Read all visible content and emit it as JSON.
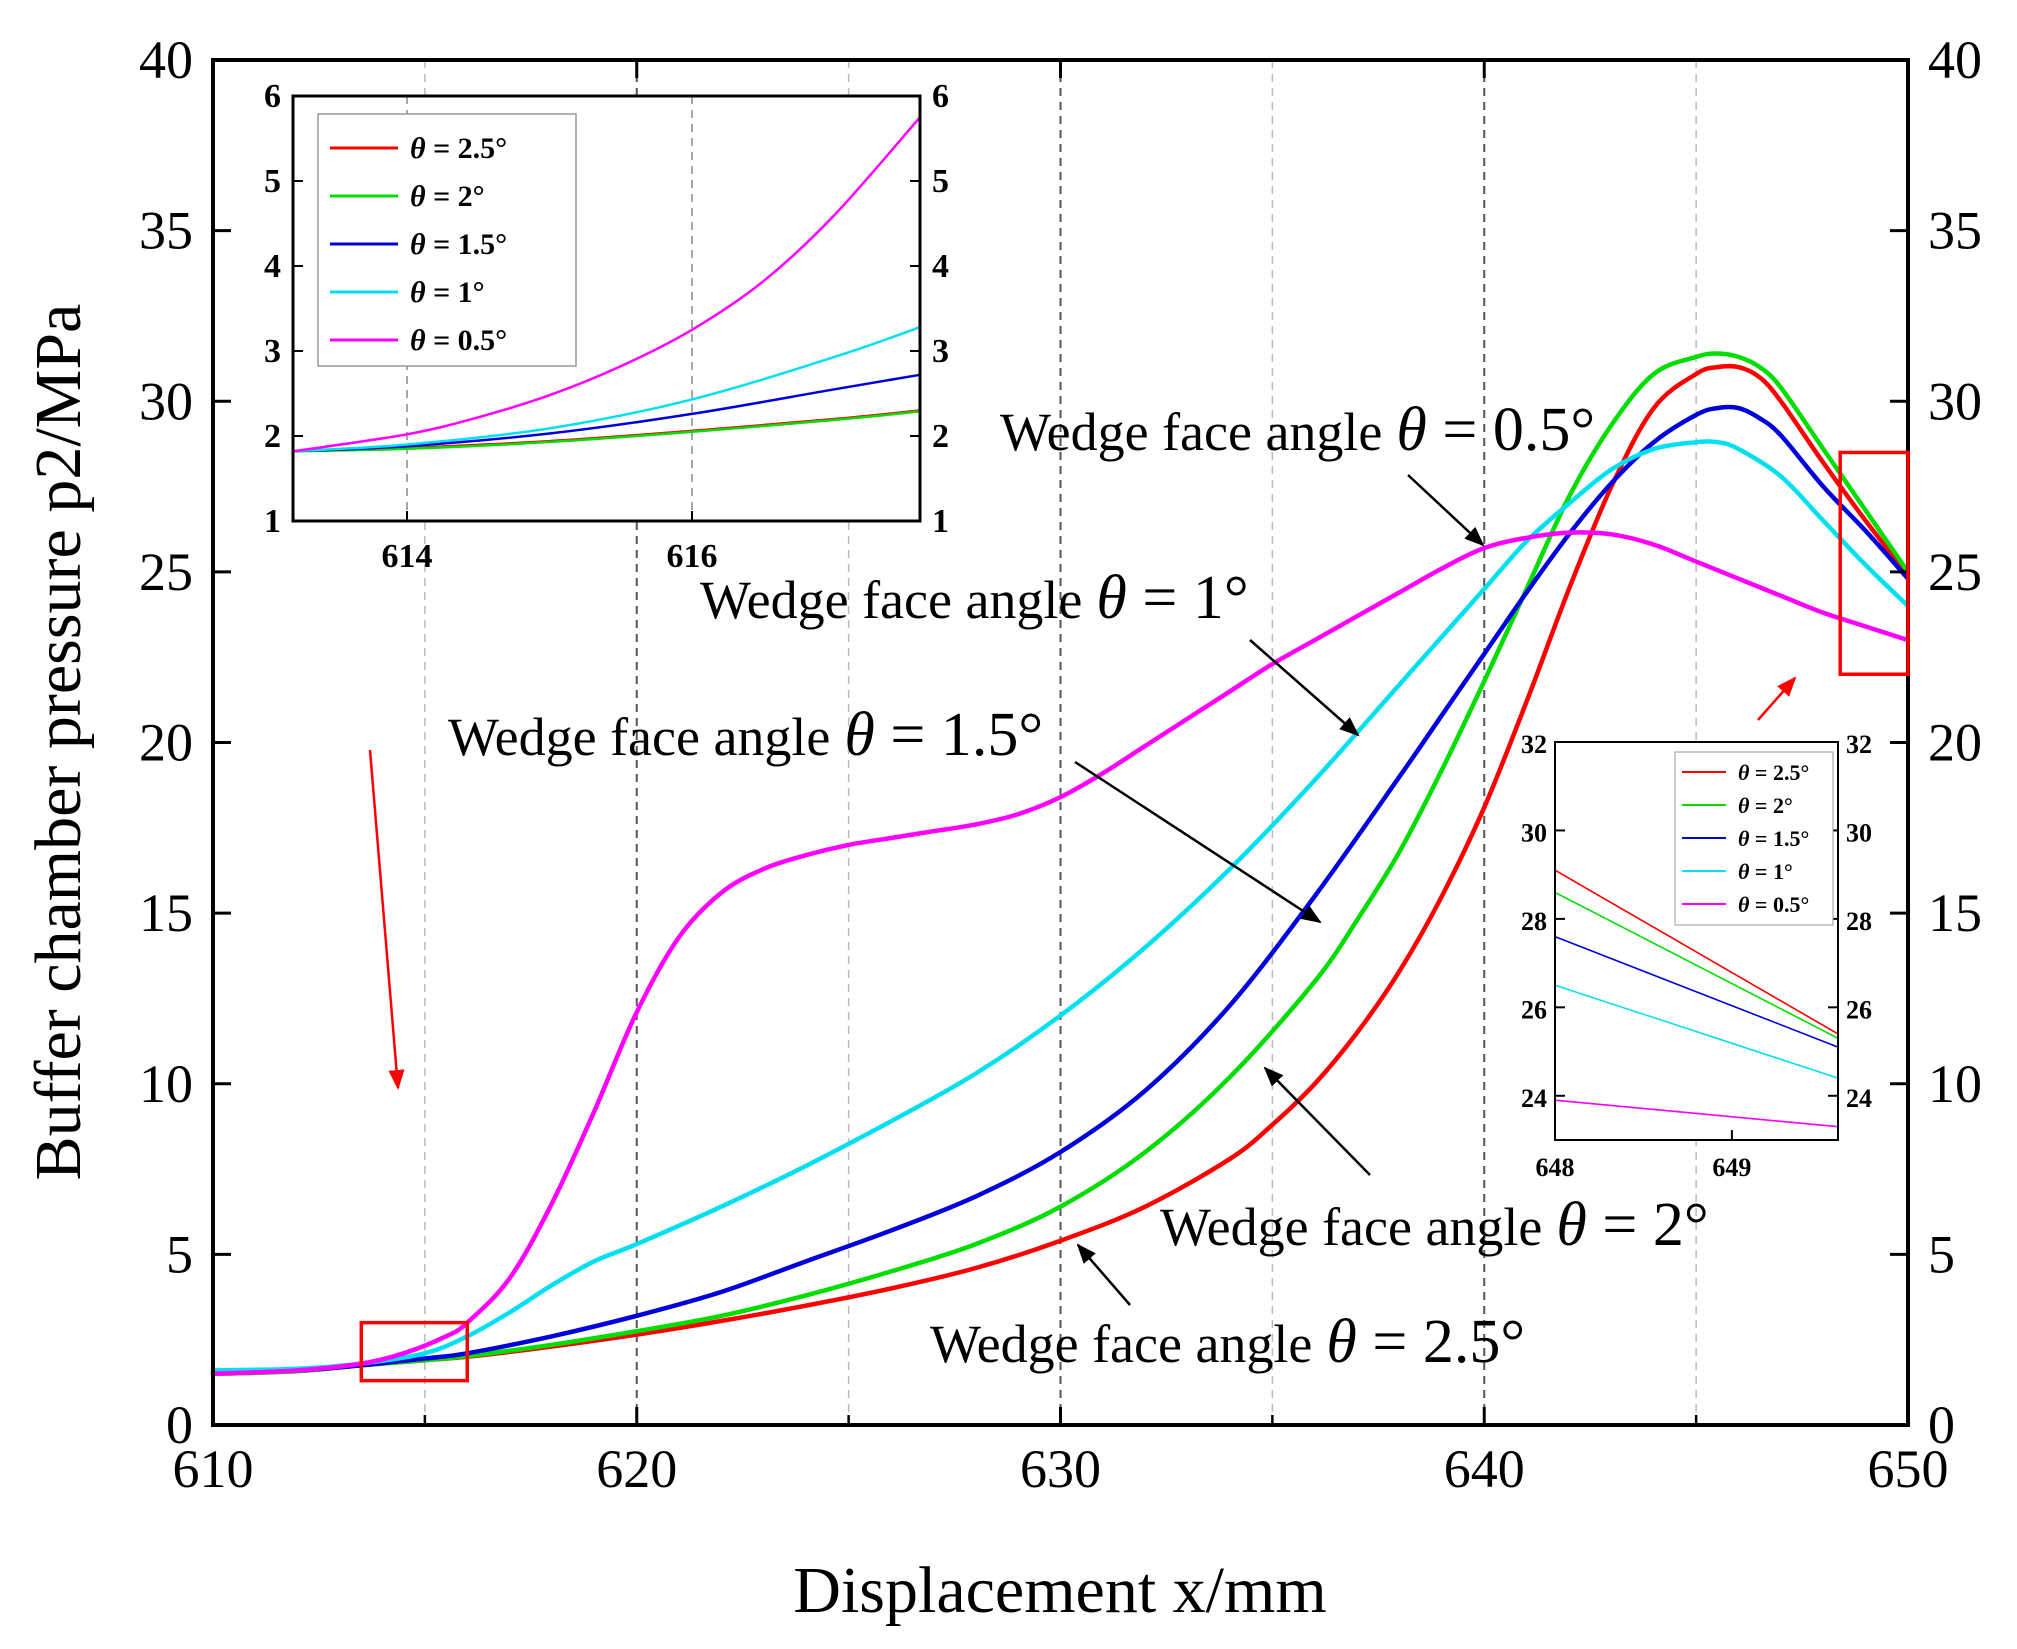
{
  "chart_data": {
    "type": "line",
    "xlabel": "Displacement  x/mm",
    "ylabel": "Buffer chamber pressure  p2/MPa",
    "xlim": [
      610,
      650
    ],
    "ylim": [
      0,
      40
    ],
    "xticks": [
      610,
      620,
      630,
      640,
      650
    ],
    "yticks": [
      0,
      5,
      10,
      15,
      20,
      25,
      30,
      35,
      40
    ],
    "grid": "vertical dashed at every 5 mm",
    "series": [
      {
        "name": "θ = 2.5°",
        "color": "#ff0000",
        "x": [
          610,
          612,
          613.5,
          615,
          616,
          618,
          620,
          622,
          624,
          626,
          628,
          630,
          632,
          634,
          635,
          636,
          637,
          638,
          639,
          640,
          641,
          642,
          643,
          644,
          645,
          645.5,
          646,
          646.5,
          647,
          648,
          649,
          650
        ],
        "y": [
          1.5,
          1.58,
          1.75,
          1.9,
          2.0,
          2.3,
          2.65,
          3.05,
          3.5,
          4.0,
          4.6,
          5.4,
          6.4,
          7.8,
          8.8,
          10.0,
          11.5,
          13.3,
          15.5,
          18.1,
          21.2,
          24.5,
          27.5,
          29.8,
          30.8,
          31.0,
          31.0,
          30.7,
          30.0,
          28.2,
          26.5,
          24.9
        ]
      },
      {
        "name": "θ = 2°",
        "color": "#00dd00",
        "x": [
          610,
          612,
          613.5,
          615,
          616,
          618,
          620,
          622,
          624,
          626,
          628,
          630,
          632,
          634,
          636,
          637,
          638,
          639,
          640,
          641,
          642,
          643,
          644,
          645,
          645.5,
          646,
          646.5,
          647,
          648,
          649,
          650
        ],
        "y": [
          1.5,
          1.58,
          1.75,
          1.9,
          2.02,
          2.35,
          2.75,
          3.2,
          3.8,
          4.5,
          5.3,
          6.4,
          8.0,
          10.2,
          13.0,
          14.8,
          16.8,
          19.2,
          21.8,
          24.5,
          27.2,
          29.3,
          30.8,
          31.3,
          31.4,
          31.3,
          31.0,
          30.4,
          28.6,
          26.8,
          25.0
        ]
      },
      {
        "name": "θ = 1.5°",
        "color": "#0000dd",
        "x": [
          610,
          612,
          613.5,
          615,
          616,
          618,
          620,
          622,
          624,
          626,
          628,
          630,
          632,
          634,
          636,
          638,
          639,
          640,
          641,
          642,
          643,
          644,
          645,
          645.5,
          646,
          646.5,
          647,
          648,
          649,
          650
        ],
        "y": [
          1.55,
          1.6,
          1.75,
          1.95,
          2.1,
          2.6,
          3.2,
          3.9,
          4.8,
          5.7,
          6.7,
          8.0,
          9.8,
          12.3,
          15.5,
          19.0,
          20.8,
          22.6,
          24.4,
          26.1,
          27.6,
          28.8,
          29.6,
          29.8,
          29.8,
          29.5,
          29.0,
          27.5,
          26.2,
          24.8
        ]
      },
      {
        "name": "θ = 1°",
        "color": "#00e0f0",
        "x": [
          610,
          612,
          613.5,
          615,
          616,
          617,
          618,
          619,
          620,
          622,
          624,
          626,
          628,
          630,
          632,
          634,
          636,
          638,
          640,
          641,
          642,
          643,
          644,
          645,
          645.5,
          646,
          647,
          648,
          649,
          650
        ],
        "y": [
          1.6,
          1.65,
          1.8,
          2.1,
          2.6,
          3.3,
          4.1,
          4.8,
          5.3,
          6.4,
          7.6,
          8.9,
          10.3,
          12.0,
          14.0,
          16.3,
          18.9,
          21.7,
          24.5,
          25.9,
          27.0,
          28.0,
          28.6,
          28.8,
          28.8,
          28.6,
          27.8,
          26.5,
          25.2,
          24.0
        ]
      },
      {
        "name": "θ = 0.5°",
        "color": "#ff00ff",
        "x": [
          610,
          612,
          613.5,
          614.5,
          615.5,
          616,
          617,
          618,
          619,
          620,
          621,
          622,
          623,
          624,
          625,
          626,
          627,
          628,
          629,
          630,
          631,
          632,
          633,
          634,
          635,
          636,
          637,
          638,
          639,
          640,
          641,
          642,
          643,
          644,
          645,
          646,
          647,
          648,
          649,
          650
        ],
        "y": [
          1.5,
          1.6,
          1.8,
          2.1,
          2.6,
          3.0,
          4.3,
          6.5,
          9.2,
          12.1,
          14.3,
          15.6,
          16.3,
          16.7,
          17.0,
          17.2,
          17.4,
          17.6,
          17.9,
          18.4,
          19.1,
          19.9,
          20.7,
          21.5,
          22.3,
          23.0,
          23.7,
          24.4,
          25.1,
          25.7,
          26.0,
          26.15,
          26.1,
          25.8,
          25.3,
          24.8,
          24.3,
          23.8,
          23.4,
          23.0
        ]
      }
    ],
    "annotations": [
      {
        "label": "Wedge face angle",
        "symbol": "θ",
        "value": " = 0.5°"
      },
      {
        "label": "Wedge face angle",
        "symbol": "θ",
        "value": " = 1°"
      },
      {
        "label": "Wedge face angle",
        "symbol": "θ",
        "value": " = 1.5°"
      },
      {
        "label": "Wedge face angle",
        "symbol": "θ",
        "value": " = 2°"
      },
      {
        "label": "Wedge face angle",
        "symbol": "θ",
        "value": " = 2.5°"
      }
    ],
    "insets": [
      {
        "name": "inset-start",
        "xlim": [
          613.2,
          617.6
        ],
        "ylim": [
          1,
          6
        ],
        "xticks": [
          614,
          616
        ],
        "yticks": [
          1,
          2,
          3,
          4,
          5,
          6
        ],
        "zoom_region": {
          "xlim": [
            613.5,
            616
          ],
          "ylim": [
            1.3,
            3.0
          ]
        },
        "series": [
          {
            "name": "θ = 2.5°",
            "x": [
              613.2,
              614,
              615,
              616,
              617,
              617.6
            ],
            "y": [
              1.82,
              1.86,
              1.94,
              2.06,
              2.2,
              2.3
            ]
          },
          {
            "name": "θ = 2°",
            "x": [
              613.2,
              614,
              615,
              616,
              617,
              617.6
            ],
            "y": [
              1.82,
              1.85,
              1.93,
              2.05,
              2.19,
              2.29
            ]
          },
          {
            "name": "θ = 1.5°",
            "x": [
              613.2,
              614,
              615,
              616,
              617,
              617.6
            ],
            "y": [
              1.82,
              1.88,
              2.03,
              2.26,
              2.55,
              2.72
            ]
          },
          {
            "name": "θ = 1°",
            "x": [
              613.2,
              614,
              615,
              616,
              617,
              617.6
            ],
            "y": [
              1.82,
              1.9,
              2.09,
              2.43,
              2.93,
              3.28
            ]
          },
          {
            "name": "θ = 0.5°",
            "x": [
              613.2,
              614,
              614.5,
              615,
              615.5,
              616,
              616.5,
              617,
              617.6
            ],
            "y": [
              1.82,
              2.02,
              2.22,
              2.48,
              2.82,
              3.25,
              3.82,
              4.6,
              5.75
            ]
          }
        ]
      },
      {
        "name": "inset-end",
        "xlim": [
          648,
          649.6
        ],
        "ylim": [
          23,
          32
        ],
        "xticks": [
          648,
          649
        ],
        "yticks": [
          24,
          26,
          28,
          30,
          32
        ],
        "zoom_region": {
          "xlim": [
            648.4,
            650
          ],
          "ylim": [
            22,
            28.5
          ]
        },
        "series": [
          {
            "name": "θ = 2.5°",
            "x": [
              648,
              649.6
            ],
            "y": [
              29.1,
              25.4
            ]
          },
          {
            "name": "θ = 2°",
            "x": [
              648,
              649.6
            ],
            "y": [
              28.6,
              25.3
            ]
          },
          {
            "name": "θ = 1.5°",
            "x": [
              648,
              649.6
            ],
            "y": [
              27.6,
              25.1
            ]
          },
          {
            "name": "θ = 1°",
            "x": [
              648,
              649.6
            ],
            "y": [
              26.5,
              24.4
            ]
          },
          {
            "name": "θ = 0.5°",
            "x": [
              648,
              649.6
            ],
            "y": [
              23.9,
              23.3
            ]
          }
        ]
      }
    ]
  }
}
